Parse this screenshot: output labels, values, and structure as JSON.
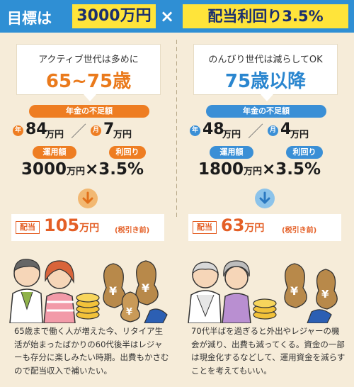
{
  "header": {
    "goal_label": "目標は",
    "amount": "3000万円",
    "times": "×",
    "rate": "配当利回り3.5%"
  },
  "left": {
    "subtitle": "アクティブ世代は多めに",
    "age": "65~75歳",
    "shortage_label": "年金の不足額",
    "year_mark": "年",
    "year_value": "84",
    "month_mark": "月",
    "month_value": "7",
    "unit_man_en": "万円",
    "slash": "／",
    "invest_label": "運用額",
    "yield_label": "利回り",
    "invest_amount": "3000",
    "times_rate": "×3.5%",
    "result_tag": "配当",
    "result_value": "105",
    "result_note": "(税引き前)",
    "description": "65歳まで働く人が増えた今、リタイア生活が始まったばかりの60代後半はレジャーも存分に楽しみたい時期。出費もかさむので配当収入で補いたい。"
  },
  "right": {
    "subtitle": "のんびり世代は減らしてOK",
    "age": "75歳以降",
    "shortage_label": "年金の不足額",
    "year_mark": "年",
    "year_value": "48",
    "month_mark": "月",
    "month_value": "4",
    "unit_man_en": "万円",
    "slash": "／",
    "invest_label": "運用額",
    "yield_label": "利回り",
    "invest_amount": "1800",
    "times_rate": "×3.5%",
    "result_tag": "配当",
    "result_value": "63",
    "result_note": "(税引き前)",
    "description": "70代半ばを過ぎると外出やレジャーの機会が減り、出費も減ってくる。資金の一部は現金化するなどして、運用資金を減らすことを考えてもいい。"
  },
  "colors": {
    "header_bg": "#2f8fd4",
    "highlight": "#ffe43a",
    "orange": "#ee7d22",
    "blue": "#3a8fd6",
    "panel_bg": "#f6ecd9",
    "result_red": "#e45f26"
  },
  "icons": [
    "arrow-down-icon",
    "coin-stack-icon",
    "money-bag-icon"
  ]
}
